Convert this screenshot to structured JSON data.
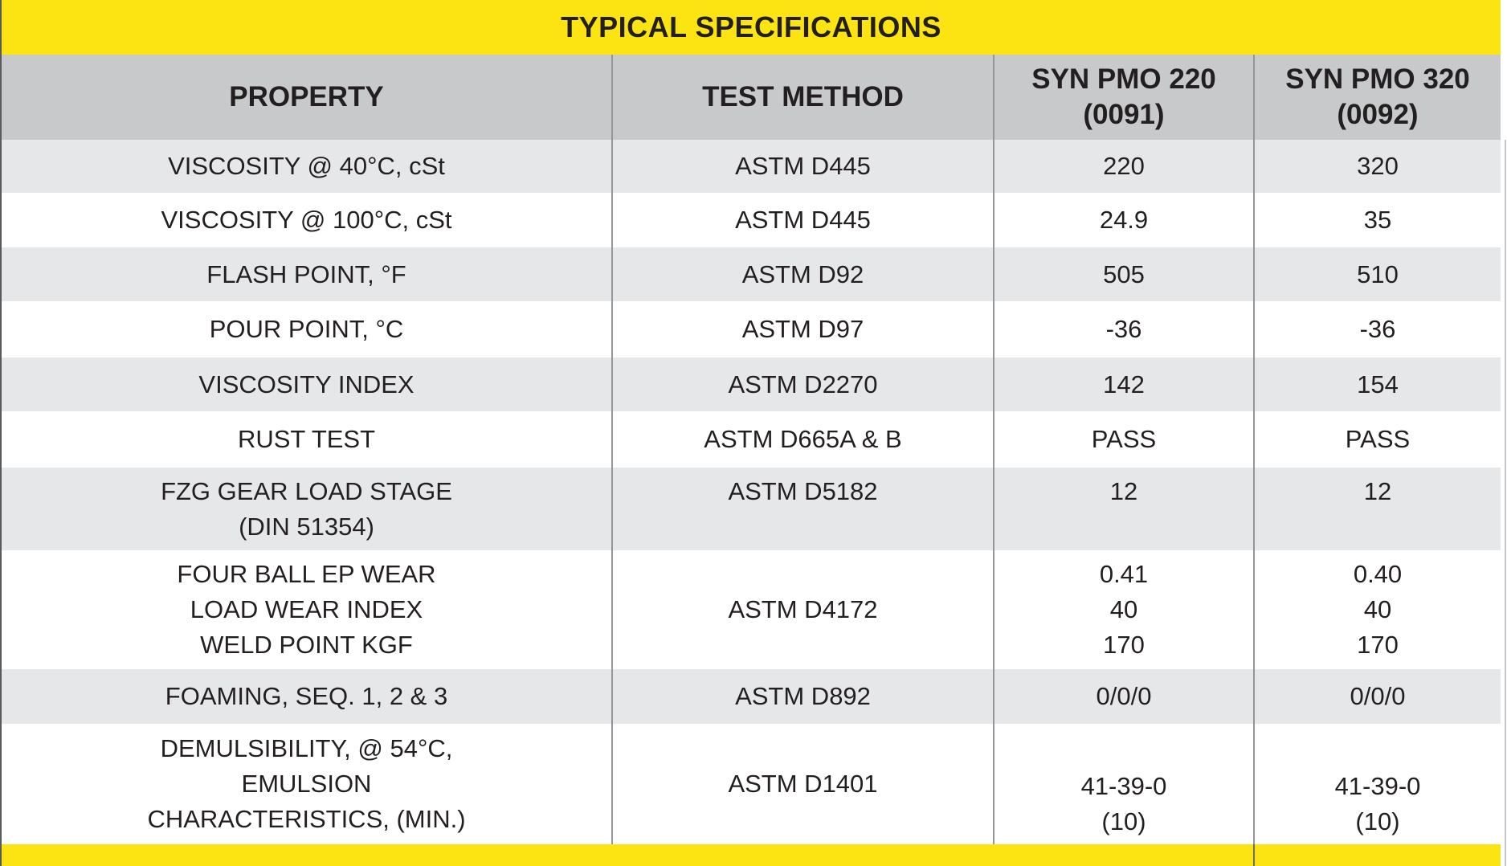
{
  "title": "TYPICAL SPECIFICATIONS",
  "header": {
    "property": "PROPERTY",
    "method": "TEST METHOD",
    "products": [
      {
        "name": "SYN PMO 220",
        "code": "(0091)"
      },
      {
        "name": "SYN PMO 320",
        "code": "(0092)"
      }
    ]
  },
  "rows": [
    {
      "property": [
        "VISCOSITY @ 40°C, cSt"
      ],
      "method": "ASTM D445",
      "pmo220": [
        "220"
      ],
      "pmo320": [
        "320"
      ]
    },
    {
      "property": [
        "VISCOSITY @ 100°C, cSt"
      ],
      "method": "ASTM D445",
      "pmo220": [
        "24.9"
      ],
      "pmo320": [
        "35"
      ]
    },
    {
      "property": [
        "FLASH POINT, °F"
      ],
      "method": "ASTM D92",
      "pmo220": [
        "505"
      ],
      "pmo320": [
        "510"
      ]
    },
    {
      "property": [
        "POUR POINT, °C"
      ],
      "method": "ASTM D97",
      "pmo220": [
        "-36"
      ],
      "pmo320": [
        "-36"
      ]
    },
    {
      "property": [
        "VISCOSITY INDEX"
      ],
      "method": "ASTM D2270",
      "pmo220": [
        "142"
      ],
      "pmo320": [
        "154"
      ]
    },
    {
      "property": [
        "RUST TEST"
      ],
      "method": "ASTM D665A & B",
      "pmo220": [
        "PASS"
      ],
      "pmo320": [
        "PASS"
      ]
    },
    {
      "property": [
        "FZG GEAR LOAD STAGE",
        "(DIN 51354)"
      ],
      "method": "ASTM D5182",
      "pmo220": [
        "12"
      ],
      "pmo320": [
        "12"
      ]
    },
    {
      "property": [
        "FOUR BALL EP WEAR",
        "LOAD WEAR INDEX",
        "WELD POINT KGF"
      ],
      "method": "ASTM D4172",
      "pmo220": [
        "0.41",
        "40",
        "170"
      ],
      "pmo320": [
        "0.40",
        "40",
        "170"
      ]
    },
    {
      "property": [
        "FOAMING, SEQ. 1, 2 & 3"
      ],
      "method": "ASTM D892",
      "pmo220": [
        "0/0/0"
      ],
      "pmo320": [
        "0/0/0"
      ]
    },
    {
      "property": [
        "DEMULSIBILITY, @ 54°C,",
        "EMULSION",
        "CHARACTERISTICS, (MIN.)"
      ],
      "method": "ASTM D1401",
      "pmo220": [
        "41-39-0",
        "(10)"
      ],
      "pmo320": [
        "41-39-0",
        "(10)"
      ]
    }
  ],
  "colors": {
    "accent_yellow": "#FCE412",
    "header_gray": "#C7C9CB",
    "row_alt_gray": "#E6E7E9",
    "text": "#231F20",
    "column_border": "#939598"
  }
}
